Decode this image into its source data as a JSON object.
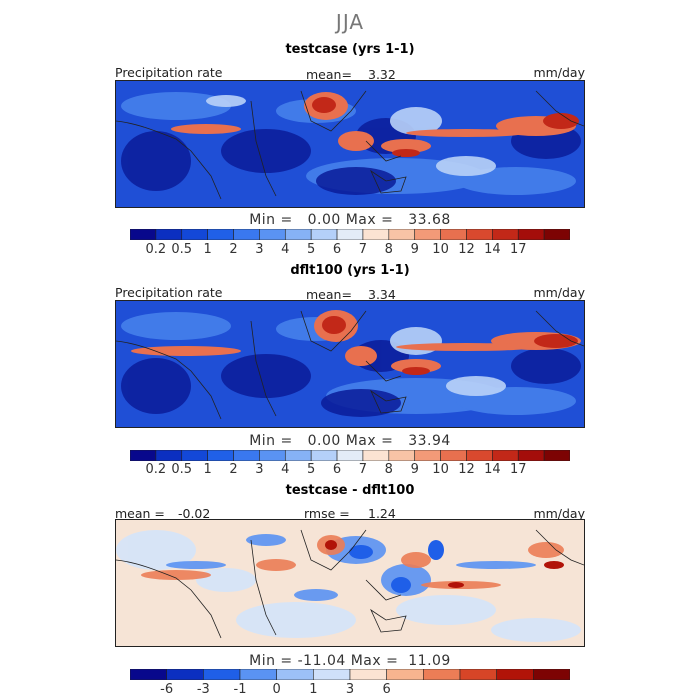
{
  "season": "JJA",
  "panels": [
    {
      "title": "testcase (yrs 1-1)",
      "left_label": "Precipitation rate",
      "center_label": "mean=",
      "center_value": "3.32",
      "units": "mm/day",
      "min_label": "Min =",
      "min_value": "0.00",
      "max_label": "Max =",
      "max_value": "33.68"
    },
    {
      "title": "dflt100 (yrs 1-1)",
      "left_label": "Precipitation rate",
      "center_label": "mean=",
      "center_value": "3.34",
      "units": "mm/day",
      "min_label": "Min =",
      "min_value": "0.00",
      "max_label": "Max =",
      "max_value": "33.94"
    },
    {
      "title": "testcase - dflt100",
      "left_label": "mean =",
      "left_value": "-0.02",
      "center_label": "rmse =",
      "center_value": "1.24",
      "units": "mm/day",
      "min_label": "Min =",
      "min_value": "-11.04",
      "max_label": "Max =",
      "max_value": "11.09"
    }
  ],
  "colorbars": {
    "precip": {
      "colors": [
        "#08088c",
        "#0b2fc0",
        "#1348d8",
        "#2060e8",
        "#3a78ef",
        "#5a93f3",
        "#86b2f6",
        "#b4d0f9",
        "#e3ecf7",
        "#fbe3d2",
        "#f8c3a6",
        "#f39a78",
        "#e8704f",
        "#d9492e",
        "#c22818",
        "#a40d0a",
        "#7d0303"
      ],
      "ticks": [
        "0.2",
        "0.5",
        "1",
        "2",
        "3",
        "4",
        "5",
        "6",
        "7",
        "8",
        "9",
        "10",
        "12",
        "14",
        "17"
      ]
    },
    "diff": {
      "colors": [
        "#08088c",
        "#0b2fc0",
        "#1f5fe8",
        "#5a93f3",
        "#9cc0f7",
        "#cfe0fa",
        "#fbe3d2",
        "#f7b48f",
        "#ec7d56",
        "#d74527",
        "#b11308",
        "#7d0303"
      ],
      "ticks": [
        "-6",
        "-3",
        "-1",
        "0",
        "1",
        "3",
        "6"
      ]
    }
  },
  "chart_data": [
    {
      "type": "heatmap",
      "title": "testcase (yrs 1-1)",
      "subtitle": "JJA",
      "variable": "Precipitation rate",
      "units": "mm/day",
      "mean": 3.32,
      "min": 0.0,
      "max": 33.68,
      "levels": [
        0.2,
        0.5,
        1,
        2,
        3,
        4,
        5,
        6,
        7,
        8,
        9,
        10,
        12,
        14,
        17
      ]
    },
    {
      "type": "heatmap",
      "title": "dflt100 (yrs 1-1)",
      "subtitle": "JJA",
      "variable": "Precipitation rate",
      "units": "mm/day",
      "mean": 3.34,
      "min": 0.0,
      "max": 33.94,
      "levels": [
        0.2,
        0.5,
        1,
        2,
        3,
        4,
        5,
        6,
        7,
        8,
        9,
        10,
        12,
        14,
        17
      ]
    },
    {
      "type": "heatmap",
      "title": "testcase - dflt100",
      "subtitle": "JJA",
      "units": "mm/day",
      "mean": -0.02,
      "rmse": 1.24,
      "min": -11.04,
      "max": 11.09,
      "levels": [
        -6,
        -3,
        -1,
        0,
        1,
        3,
        6
      ]
    }
  ]
}
